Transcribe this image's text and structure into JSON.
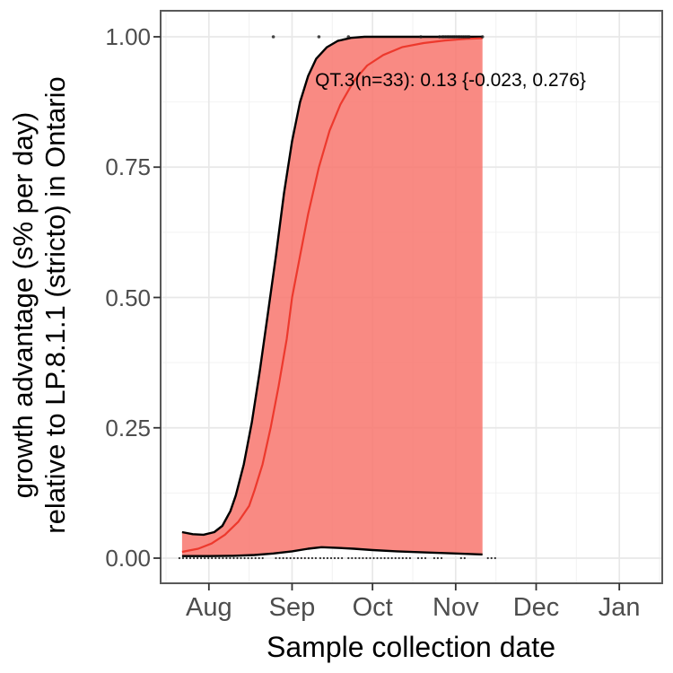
{
  "chart_data": {
    "type": "area",
    "title": "",
    "xlabel": "Sample collection date",
    "ylabel_line1": "growth advantage (s% per day)",
    "ylabel_line2": "relative to LP.8.1.1 (stricto) in Ontario",
    "annotation": "QT.3(n=33): 0.13 {-0.023, 0.276}",
    "variant": "QT.3",
    "n": 33,
    "estimate": 0.13,
    "ci": [
      -0.023,
      0.276
    ],
    "legend": "none",
    "grid": "major+minor",
    "x_domain": [
      "Jul 14",
      "Jan 17"
    ],
    "ylim": [
      0,
      1
    ],
    "x_ticks": [
      {
        "label": "Aug",
        "date": "Aug 1"
      },
      {
        "label": "Sep",
        "date": "Sep 1"
      },
      {
        "label": "Oct",
        "date": "Oct 1"
      },
      {
        "label": "Nov",
        "date": "Nov 1"
      },
      {
        "label": "Dec",
        "date": "Dec 1"
      },
      {
        "label": "Jan",
        "date": "Jan 1"
      }
    ],
    "y_ticks": [
      {
        "label": "0.00",
        "value": 0
      },
      {
        "label": "0.25",
        "value": 0.25
      },
      {
        "label": "0.50",
        "value": 0.5
      },
      {
        "label": "0.75",
        "value": 0.75
      },
      {
        "label": "1.00",
        "value": 1
      }
    ],
    "grid_minor_x_dates": [
      "Jul 16",
      "Aug 16",
      "Sep 16",
      "Oct 16",
      "Nov 16",
      "Dec 16",
      "Jan 16"
    ],
    "grid_minor_y_values": [
      0.125,
      0.375,
      0.625,
      0.875
    ],
    "series": [
      {
        "name": "mean_estimate",
        "style": "line",
        "points": [
          [
            "Jul 22",
            0.012
          ],
          [
            "Jul 28",
            0.018
          ],
          [
            "Aug 2",
            0.028
          ],
          [
            "Aug 7",
            0.045
          ],
          [
            "Aug 12",
            0.07
          ],
          [
            "Aug 16",
            0.1
          ],
          [
            "Aug 18",
            0.13
          ],
          [
            "Aug 21",
            0.18
          ],
          [
            "Aug 24",
            0.25
          ],
          [
            "Aug 27",
            0.33
          ],
          [
            "Aug 30",
            0.42
          ],
          [
            "Sep 1",
            0.5
          ],
          [
            "Sep 4",
            0.58
          ],
          [
            "Sep 7",
            0.66
          ],
          [
            "Sep 11",
            0.75
          ],
          [
            "Sep 15",
            0.82
          ],
          [
            "Sep 19",
            0.87
          ],
          [
            "Sep 24",
            0.915
          ],
          [
            "Sep 29",
            0.945
          ],
          [
            "Oct 5",
            0.965
          ],
          [
            "Oct 12",
            0.98
          ],
          [
            "Oct 20",
            0.988
          ],
          [
            "Oct 28",
            0.993
          ],
          [
            "Nov 5",
            0.996
          ],
          [
            "Nov 11",
            0.997
          ]
        ]
      },
      {
        "name": "ci_upper",
        "style": "line",
        "points": [
          [
            "Jul 22",
            0.05
          ],
          [
            "Jul 26",
            0.046
          ],
          [
            "Jul 30",
            0.045
          ],
          [
            "Aug 3",
            0.05
          ],
          [
            "Aug 6",
            0.062
          ],
          [
            "Aug 9",
            0.09
          ],
          [
            "Aug 11",
            0.12
          ],
          [
            "Aug 14",
            0.18
          ],
          [
            "Aug 17",
            0.26
          ],
          [
            "Aug 20",
            0.36
          ],
          [
            "Aug 23",
            0.47
          ],
          [
            "Aug 26",
            0.58
          ],
          [
            "Aug 29",
            0.7
          ],
          [
            "Sep 1",
            0.8
          ],
          [
            "Sep 4",
            0.875
          ],
          [
            "Sep 7",
            0.925
          ],
          [
            "Sep 10",
            0.958
          ],
          [
            "Sep 14",
            0.98
          ],
          [
            "Sep 18",
            0.992
          ],
          [
            "Sep 23",
            0.998
          ],
          [
            "Sep 28",
            1.0
          ],
          [
            "Nov 11",
            1.0
          ]
        ]
      },
      {
        "name": "ci_lower",
        "style": "line",
        "points": [
          [
            "Jul 22",
            0.004
          ],
          [
            "Aug 1",
            0.004
          ],
          [
            "Aug 10",
            0.0045
          ],
          [
            "Aug 18",
            0.006
          ],
          [
            "Aug 25",
            0.009
          ],
          [
            "Sep 1",
            0.013
          ],
          [
            "Sep 7",
            0.018
          ],
          [
            "Sep 12",
            0.021
          ],
          [
            "Sep 17",
            0.02
          ],
          [
            "Sep 24",
            0.018
          ],
          [
            "Oct 1",
            0.0155
          ],
          [
            "Oct 10",
            0.013
          ],
          [
            "Oct 20",
            0.011
          ],
          [
            "Nov 1",
            0.009
          ],
          [
            "Nov 11",
            0.007
          ]
        ]
      }
    ],
    "band": {
      "upper": "ci_upper",
      "lower": "ci_lower"
    },
    "observations_top": {
      "y": 1.0,
      "dates": [
        "Aug 25",
        "Sep 11",
        "Sep 22",
        "Oct 19",
        "Oct 26",
        "Oct 27",
        "Oct 27.6",
        "Oct 28.3",
        "Oct 29",
        "Oct 29.6",
        "Oct 30.3",
        "Oct 31",
        "Oct 31.6",
        "Nov 1.3",
        "Nov 2",
        "Nov 2.6",
        "Nov 3.3",
        "Nov 4",
        "Nov 4.7",
        "Nov 5.4",
        "Nov 6",
        "Nov 11"
      ]
    },
    "observations_rug": {
      "y": 0.0,
      "segments": [
        [
          "Jul 21",
          "Aug 22"
        ],
        [
          "Aug 26",
          "Sep 10"
        ],
        [
          "Sep 11.5",
          "Sep 20"
        ],
        [
          "Sep 22",
          "Oct 16"
        ],
        [
          "Oct 18",
          "Oct 22"
        ],
        [
          "Oct 24",
          "Oct 27"
        ],
        [
          "Nov 3",
          "Nov 5"
        ],
        [
          "Nov 13",
          "Nov 16"
        ]
      ]
    }
  },
  "colors": {
    "band_fill": "#F8766D",
    "band_opacity": 0.85,
    "mean_line": "#ED392D",
    "bound_line": "#000000",
    "point": "#1A1A1A",
    "grid_major": "#E8E8E8",
    "grid_minor": "#F2F2F2",
    "panel_border": "#595959",
    "tick_mark": "#333333",
    "tick_label": "#4D4D4D",
    "axis_title": "#000000"
  }
}
